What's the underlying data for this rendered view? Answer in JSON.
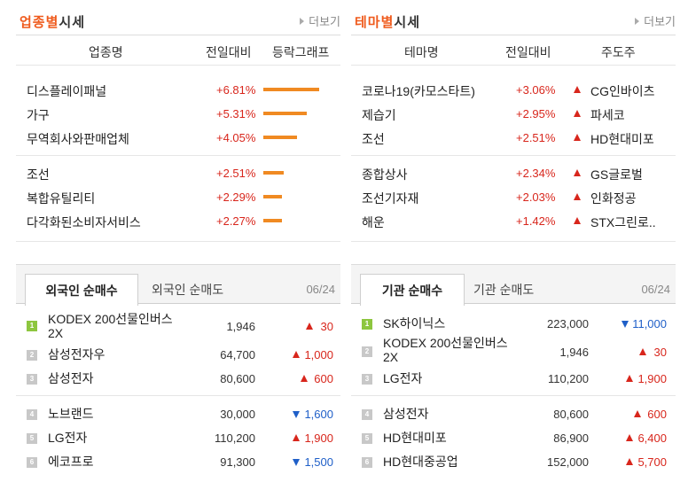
{
  "industry": {
    "title_accent": "업종별",
    "title_rest": "시세",
    "more": "더보기",
    "headers": {
      "name": "업종명",
      "change": "전일대비",
      "graph": "등락그래프"
    },
    "rows": [
      {
        "name": "디스플레이패널",
        "change": "+6.81%",
        "bar": 0.681
      },
      {
        "name": "가구",
        "change": "+5.31%",
        "bar": 0.531
      },
      {
        "name": "무역회사와판매업체",
        "change": "+4.05%",
        "bar": 0.405
      },
      {
        "name": "조선",
        "change": "+2.51%",
        "bar": 0.251
      },
      {
        "name": "복합유틸리티",
        "change": "+2.29%",
        "bar": 0.229
      },
      {
        "name": "다각화된소비자서비스",
        "change": "+2.27%",
        "bar": 0.227
      }
    ]
  },
  "theme": {
    "title_accent": "테마별",
    "title_rest": "시세",
    "more": "더보기",
    "headers": {
      "name": "테마명",
      "change": "전일대비",
      "leader": "주도주"
    },
    "rows": [
      {
        "name": "코로나19(카모스타트)",
        "change": "+3.06%",
        "leader": "CG인바이츠"
      },
      {
        "name": "제습기",
        "change": "+2.95%",
        "leader": "파세코"
      },
      {
        "name": "조선",
        "change": "+2.51%",
        "leader": "HD현대미포"
      },
      {
        "name": "종합상사",
        "change": "+2.34%",
        "leader": "GS글로벌"
      },
      {
        "name": "조선기자재",
        "change": "+2.03%",
        "leader": "인화정공"
      },
      {
        "name": "해운",
        "change": "+1.42%",
        "leader": "STX그린로.."
      }
    ]
  },
  "foreign": {
    "tab_active": "외국인 순매수",
    "tab_inactive": "외국인 순매도",
    "date": "06/24",
    "rows": [
      {
        "rank": "1",
        "name": "KODEX 200선물인버스2X",
        "price": "1,946",
        "diff": "30",
        "dir": "up"
      },
      {
        "rank": "2",
        "name": "삼성전자우",
        "price": "64,700",
        "diff": "1,000",
        "dir": "up"
      },
      {
        "rank": "3",
        "name": "삼성전자",
        "price": "80,600",
        "diff": "600",
        "dir": "up"
      },
      {
        "rank": "4",
        "name": "노브랜드",
        "price": "30,000",
        "diff": "1,600",
        "dir": "down"
      },
      {
        "rank": "5",
        "name": "LG전자",
        "price": "110,200",
        "diff": "1,900",
        "dir": "up"
      },
      {
        "rank": "6",
        "name": "에코프로",
        "price": "91,300",
        "diff": "1,500",
        "dir": "down"
      }
    ]
  },
  "institution": {
    "tab_active": "기관 순매수",
    "tab_inactive": "기관 순매도",
    "date": "06/24",
    "rows": [
      {
        "rank": "1",
        "name": "SK하이닉스",
        "price": "223,000",
        "diff": "11,000",
        "dir": "down"
      },
      {
        "rank": "2",
        "name": "KODEX 200선물인버스2X",
        "price": "1,946",
        "diff": "30",
        "dir": "up"
      },
      {
        "rank": "3",
        "name": "LG전자",
        "price": "110,200",
        "diff": "1,900",
        "dir": "up"
      },
      {
        "rank": "4",
        "name": "삼성전자",
        "price": "80,600",
        "diff": "600",
        "dir": "up"
      },
      {
        "rank": "5",
        "name": "HD현대미포",
        "price": "86,900",
        "diff": "6,400",
        "dir": "up"
      },
      {
        "rank": "6",
        "name": "HD현대중공업",
        "price": "152,000",
        "diff": "5,700",
        "dir": "up"
      }
    ]
  }
}
